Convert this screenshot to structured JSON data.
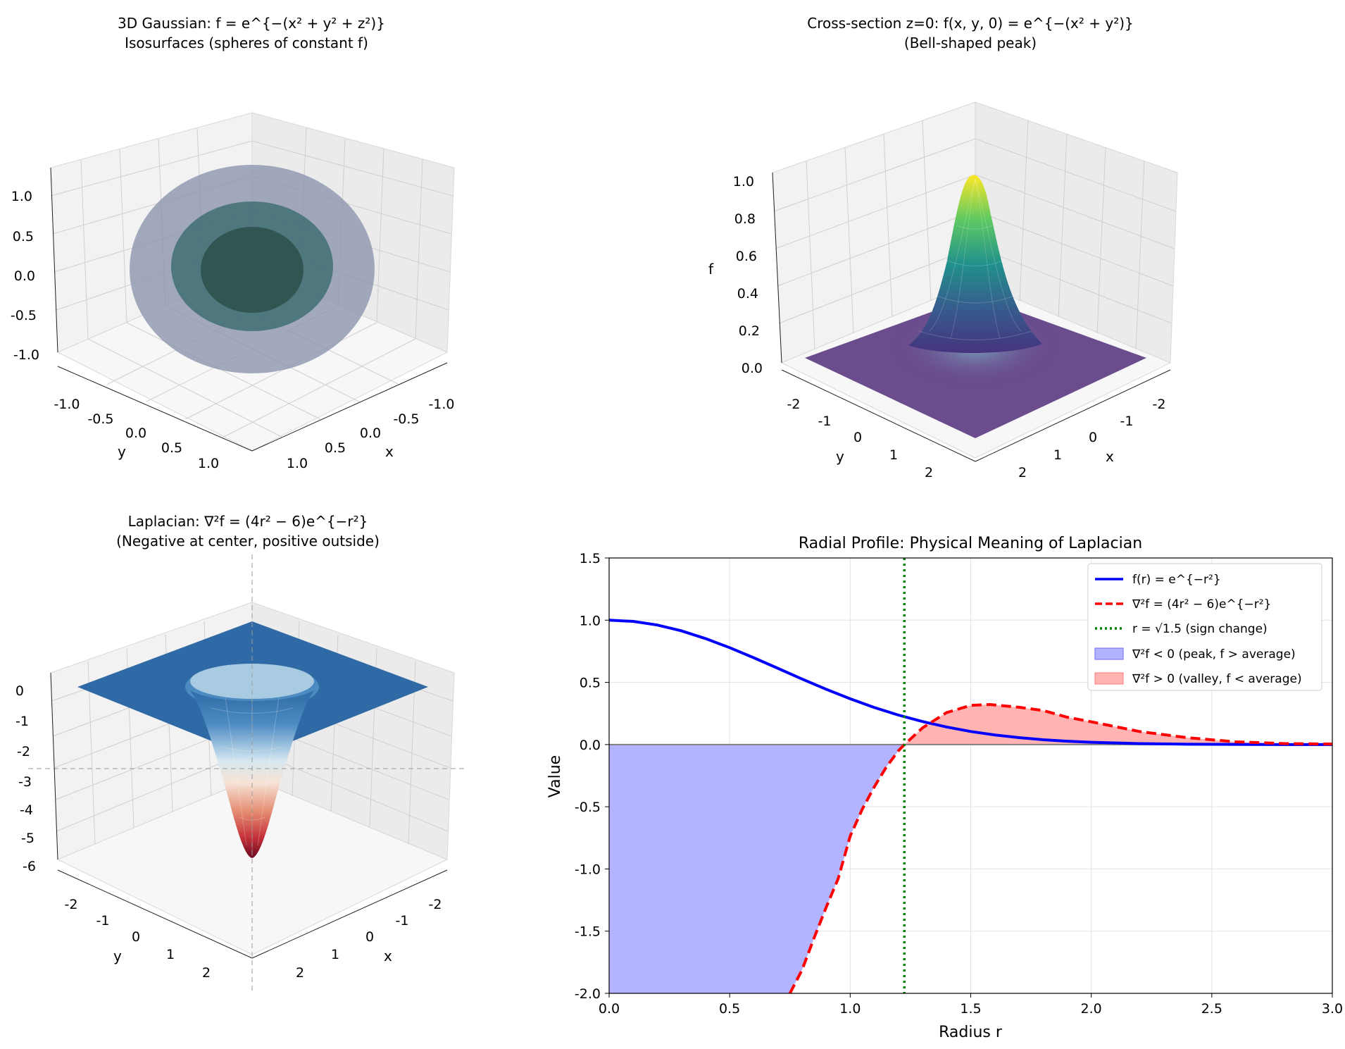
{
  "chart_data": [
    {
      "type": "surface3d",
      "title_line1": "3D Gaussian: f = e^{−(x² + y² + z²)}",
      "title_line2": "Isosurfaces (spheres of constant f)",
      "xlabel": "x",
      "ylabel": "y",
      "zlabel": "",
      "xlim": [
        -1.2,
        1.2
      ],
      "ylim": [
        -1.2,
        1.2
      ],
      "zlim": [
        -1.2,
        1.2
      ],
      "xticks": [
        "-1.0",
        "-0.5",
        "0.0",
        "0.5",
        "1.0"
      ],
      "yticks": [
        "-1.0",
        "-0.5",
        "0.0",
        "0.5",
        "1.0"
      ],
      "zticks": [
        "-1.0",
        "-0.5",
        "0.0",
        "0.5",
        "1.0"
      ],
      "isosurface_radii": [
        1.0,
        0.7,
        0.5
      ],
      "isosurface_colors": [
        "#8a93ad",
        "#3f6f73",
        "#2f5a52"
      ]
    },
    {
      "type": "surface3d",
      "title_line1": "Cross-section z=0: f(x, y, 0) = e^{−(x² + y²)}",
      "title_line2": "(Bell-shaped peak)",
      "xlabel": "x",
      "ylabel": "y",
      "zlabel": "f",
      "xlim": [
        -2.5,
        2.5
      ],
      "ylim": [
        -2.5,
        2.5
      ],
      "zlim": [
        0.0,
        1.0
      ],
      "xticks": [
        "-2",
        "-1",
        "0",
        "1",
        "2"
      ],
      "yticks": [
        "-2",
        "-1",
        "0",
        "1",
        "2"
      ],
      "zticks": [
        "0.0",
        "0.2",
        "0.4",
        "0.6",
        "0.8",
        "1.0"
      ],
      "colormap": "viridis",
      "peak_value": 1.0
    },
    {
      "type": "surface3d",
      "title_line1": "Laplacian: ∇²f = (4r² − 6)e^{−r²}",
      "title_line2": "(Negative at center, positive outside)",
      "xlabel": "x",
      "ylabel": "y",
      "zlabel": "",
      "xlim": [
        -2.5,
        2.5
      ],
      "ylim": [
        -2.5,
        2.5
      ],
      "zlim": [
        -6.0,
        0.4
      ],
      "xticks": [
        "-2",
        "-1",
        "0",
        "1",
        "2"
      ],
      "yticks": [
        "-2",
        "-1",
        "0",
        "1",
        "2"
      ],
      "zticks": [
        "0",
        "-1",
        "-2",
        "-3",
        "-4",
        "-5",
        "-6"
      ],
      "colormap": "RdBu",
      "min_value": -6.0
    },
    {
      "type": "line",
      "title": "Radial Profile: Physical Meaning of Laplacian",
      "xlabel": "Radius r",
      "ylabel": "Value",
      "xlim": [
        0,
        3
      ],
      "ylim": [
        -2,
        1.5
      ],
      "xticks": [
        "0.0",
        "0.5",
        "1.0",
        "1.5",
        "2.0",
        "2.5",
        "3.0"
      ],
      "yticks": [
        "1.5",
        "1.0",
        "0.5",
        "0.0",
        "-0.5",
        "-1.0",
        "-1.5",
        "-2.0"
      ],
      "grid": true,
      "legend_position": "top-right",
      "series": [
        {
          "name": "f(r) = e^{−r²}",
          "color": "#0000ff",
          "style": "solid",
          "x": [
            0.0,
            0.1,
            0.2,
            0.3,
            0.4,
            0.5,
            0.6,
            0.7,
            0.8,
            0.9,
            1.0,
            1.1,
            1.2,
            1.3,
            1.4,
            1.5,
            1.6,
            1.7,
            1.8,
            1.9,
            2.0,
            2.2,
            2.4,
            2.6,
            2.8,
            3.0
          ],
          "y": [
            1.0,
            0.99,
            0.961,
            0.914,
            0.852,
            0.779,
            0.698,
            0.613,
            0.527,
            0.445,
            0.368,
            0.298,
            0.237,
            0.185,
            0.141,
            0.105,
            0.077,
            0.056,
            0.039,
            0.027,
            0.018,
            0.008,
            0.003,
            0.001,
            0.0,
            0.0
          ]
        },
        {
          "name": "∇²f = (4r² − 6)e^{−r²}",
          "color": "#ff0000",
          "style": "dashed",
          "x": [
            0.75,
            0.8,
            0.85,
            0.9,
            0.95,
            1.0,
            1.05,
            1.1,
            1.15,
            1.2,
            1.225,
            1.3,
            1.4,
            1.5,
            1.58,
            1.7,
            1.8,
            1.9,
            2.0,
            2.2,
            2.4,
            2.6,
            2.8,
            3.0
          ],
          "y": [
            -2.1,
            -1.813,
            -1.556,
            -1.31,
            -1.079,
            -0.736,
            -0.52,
            -0.34,
            -0.18,
            -0.05,
            0.0,
            0.134,
            0.257,
            0.315,
            0.322,
            0.3,
            0.274,
            0.22,
            0.183,
            0.105,
            0.055,
            0.022,
            0.008,
            0.004
          ]
        },
        {
          "name": "r = √1.5 (sign change)",
          "color": "#008000",
          "style": "dotted",
          "x": [
            1.2247,
            1.2247
          ],
          "y": [
            -2,
            1.5
          ]
        }
      ],
      "fills": [
        {
          "name": "∇²f < 0 (peak, f > average)",
          "color": "#b3b3ff"
        },
        {
          "name": "∇²f > 0 (valley, f < average)",
          "color": "#ffb3b3"
        }
      ]
    }
  ]
}
